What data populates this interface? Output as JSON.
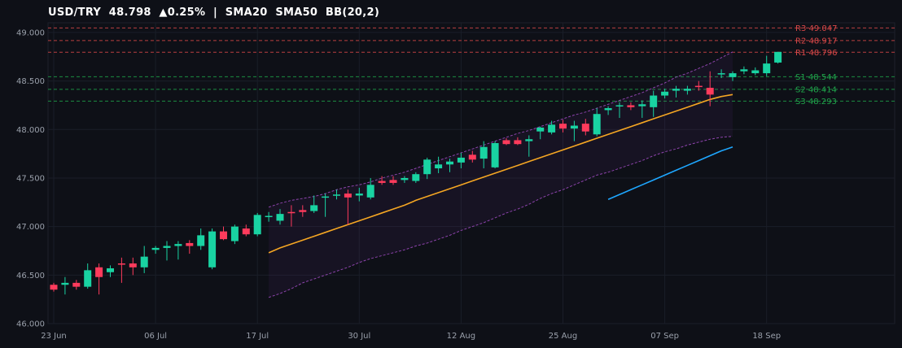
{
  "header": {
    "symbol": "USD/TRY",
    "price": "48.798",
    "change": "▲0.25%",
    "separator": "|",
    "indicators": [
      "SMA20",
      "SMA50",
      "BB(20,2)"
    ]
  },
  "colors": {
    "background": "#0e1017",
    "up": "#19d3a2",
    "down": "#ff3b5c",
    "sma20": "#f5a623",
    "sma50": "#1ea7ff",
    "bollinger": "#8e44ad",
    "resistance": "#d94848",
    "support": "#1fa34a"
  },
  "chart_data": {
    "type": "candlestick",
    "title": "USD/TRY  48.798  ▲0.25%  |  SMA20  SMA50  BB(20,2)",
    "y_ticks": [
      "46.000",
      "46.500",
      "47.000",
      "47.500",
      "48.000",
      "48.500",
      "49.000"
    ],
    "ylim": [
      46.0,
      49.1
    ],
    "x_ticks": [
      {
        "label": "23 Jun",
        "index": 0
      },
      {
        "label": "06 Jul",
        "index": 9
      },
      {
        "label": "17 Jul",
        "index": 18
      },
      {
        "label": "30 Jul",
        "index": 27
      },
      {
        "label": "12 Aug",
        "index": 36
      },
      {
        "label": "25 Aug",
        "index": 45
      },
      {
        "label": "07 Sep",
        "index": 54
      },
      {
        "label": "18 Sep",
        "index": 63
      }
    ],
    "grid": true,
    "candles": [
      [
        46.4,
        46.42,
        46.33,
        46.35
      ],
      [
        46.4,
        46.48,
        46.3,
        46.42
      ],
      [
        46.42,
        46.45,
        46.35,
        46.38
      ],
      [
        46.38,
        46.62,
        46.36,
        46.55
      ],
      [
        46.58,
        46.62,
        46.3,
        46.48
      ],
      [
        46.53,
        46.6,
        46.48,
        46.57
      ],
      [
        46.62,
        46.68,
        46.42,
        46.61
      ],
      [
        46.62,
        46.68,
        46.5,
        46.58
      ],
      [
        46.58,
        46.8,
        46.52,
        46.69
      ],
      [
        46.76,
        46.8,
        46.72,
        46.78
      ],
      [
        46.78,
        46.85,
        46.65,
        46.8
      ],
      [
        46.8,
        46.85,
        46.66,
        46.82
      ],
      [
        46.83,
        46.86,
        46.72,
        46.8
      ],
      [
        46.8,
        46.98,
        46.76,
        46.91
      ],
      [
        46.58,
        46.98,
        46.56,
        46.95
      ],
      [
        46.95,
        47.0,
        46.86,
        46.87
      ],
      [
        46.85,
        47.02,
        46.82,
        47.0
      ],
      [
        46.98,
        47.02,
        46.9,
        46.92
      ],
      [
        46.92,
        47.14,
        46.9,
        47.12
      ],
      [
        47.1,
        47.15,
        47.05,
        47.11
      ],
      [
        47.06,
        47.18,
        47.02,
        47.13
      ],
      [
        47.15,
        47.22,
        47.0,
        47.14
      ],
      [
        47.17,
        47.22,
        47.1,
        47.15
      ],
      [
        47.16,
        47.32,
        47.14,
        47.22
      ],
      [
        47.3,
        47.34,
        47.1,
        47.31
      ],
      [
        47.32,
        47.38,
        47.28,
        47.33
      ],
      [
        47.34,
        47.38,
        47.02,
        47.3
      ],
      [
        47.32,
        47.4,
        47.26,
        47.34
      ],
      [
        47.3,
        47.5,
        47.28,
        47.43
      ],
      [
        47.47,
        47.52,
        47.43,
        47.45
      ],
      [
        47.48,
        47.52,
        47.43,
        47.45
      ],
      [
        47.48,
        47.52,
        47.45,
        47.5
      ],
      [
        47.47,
        47.56,
        47.45,
        47.54
      ],
      [
        47.54,
        47.71,
        47.49,
        47.69
      ],
      [
        47.6,
        47.72,
        47.55,
        47.64
      ],
      [
        47.64,
        47.7,
        47.56,
        47.67
      ],
      [
        47.66,
        47.76,
        47.6,
        47.71
      ],
      [
        47.74,
        47.78,
        47.66,
        47.69
      ],
      [
        47.7,
        47.88,
        47.6,
        47.82
      ],
      [
        47.61,
        47.88,
        47.6,
        47.86
      ],
      [
        47.89,
        47.91,
        47.84,
        47.85
      ],
      [
        47.89,
        47.92,
        47.84,
        47.85
      ],
      [
        47.88,
        47.94,
        47.72,
        47.9
      ],
      [
        47.98,
        48.03,
        47.9,
        48.02
      ],
      [
        47.97,
        48.09,
        47.95,
        48.05
      ],
      [
        48.06,
        48.1,
        47.97,
        48.01
      ],
      [
        48.01,
        48.09,
        47.88,
        48.04
      ],
      [
        48.06,
        48.11,
        47.94,
        47.98
      ],
      [
        47.95,
        48.22,
        47.93,
        48.16
      ],
      [
        48.2,
        48.24,
        48.15,
        48.22
      ],
      [
        48.25,
        48.28,
        48.12,
        48.25
      ],
      [
        48.25,
        48.28,
        48.2,
        48.23
      ],
      [
        48.24,
        48.3,
        48.12,
        48.26
      ],
      [
        48.23,
        48.4,
        48.13,
        48.35
      ],
      [
        48.35,
        48.42,
        48.32,
        48.39
      ],
      [
        48.4,
        48.45,
        48.33,
        48.42
      ],
      [
        48.4,
        48.45,
        48.36,
        48.42
      ],
      [
        48.45,
        48.5,
        48.4,
        48.44
      ],
      [
        48.43,
        48.6,
        48.24,
        48.36
      ],
      [
        48.57,
        48.62,
        48.53,
        48.58
      ],
      [
        48.54,
        48.6,
        48.5,
        48.58
      ],
      [
        48.6,
        48.65,
        48.57,
        48.62
      ],
      [
        48.58,
        48.64,
        48.56,
        48.61
      ],
      [
        48.58,
        48.76,
        48.55,
        48.68
      ],
      [
        48.69,
        48.8,
        48.68,
        48.8
      ]
    ],
    "sma20": {
      "start_index": 19,
      "values": [
        46.73,
        46.78,
        46.82,
        46.86,
        46.9,
        46.94,
        46.98,
        47.02,
        47.06,
        47.1,
        47.14,
        47.18,
        47.22,
        47.27,
        47.31,
        47.35,
        47.39,
        47.43,
        47.47,
        47.51,
        47.55,
        47.59,
        47.63,
        47.67,
        47.71,
        47.75,
        47.79,
        47.83,
        47.87,
        47.91,
        47.95,
        47.99,
        48.03,
        48.07,
        48.11,
        48.15,
        48.19,
        48.23,
        48.27,
        48.31,
        48.34,
        48.36
      ]
    },
    "sma50": {
      "start_index": 49,
      "values": [
        47.28,
        47.33,
        47.38,
        47.43,
        47.48,
        47.53,
        47.58,
        47.63,
        47.68,
        47.73,
        47.78,
        47.82
      ]
    },
    "bollinger": {
      "start_index": 19,
      "upper": [
        47.2,
        47.24,
        47.27,
        47.29,
        47.31,
        47.34,
        47.38,
        47.41,
        47.43,
        47.46,
        47.5,
        47.53,
        47.56,
        47.6,
        47.64,
        47.68,
        47.72,
        47.76,
        47.8,
        47.84,
        47.88,
        47.92,
        47.96,
        47.99,
        48.03,
        48.07,
        48.11,
        48.15,
        48.18,
        48.22,
        48.26,
        48.3,
        48.34,
        48.38,
        48.43,
        48.48,
        48.54,
        48.58,
        48.63,
        48.68,
        48.74,
        48.8
      ],
      "lower": [
        46.27,
        46.31,
        46.36,
        46.42,
        46.46,
        46.5,
        46.54,
        46.58,
        46.63,
        46.67,
        46.7,
        46.73,
        46.76,
        46.8,
        46.83,
        46.87,
        46.91,
        46.96,
        47.0,
        47.04,
        47.09,
        47.14,
        47.18,
        47.23,
        47.29,
        47.34,
        47.38,
        47.43,
        47.48,
        47.53,
        47.56,
        47.6,
        47.64,
        47.68,
        47.73,
        47.77,
        47.8,
        47.84,
        47.87,
        47.9,
        47.92,
        47.93
      ]
    },
    "levels": [
      {
        "label": "R3",
        "value": "49.047",
        "kind": "resistance"
      },
      {
        "label": "R2",
        "value": "48.917",
        "kind": "resistance"
      },
      {
        "label": "R1",
        "value": "48.796",
        "kind": "resistance"
      },
      {
        "label": "S1",
        "value": "48.544",
        "kind": "support"
      },
      {
        "label": "S2",
        "value": "48.414",
        "kind": "support"
      },
      {
        "label": "S3",
        "value": "48.293",
        "kind": "support"
      }
    ]
  }
}
